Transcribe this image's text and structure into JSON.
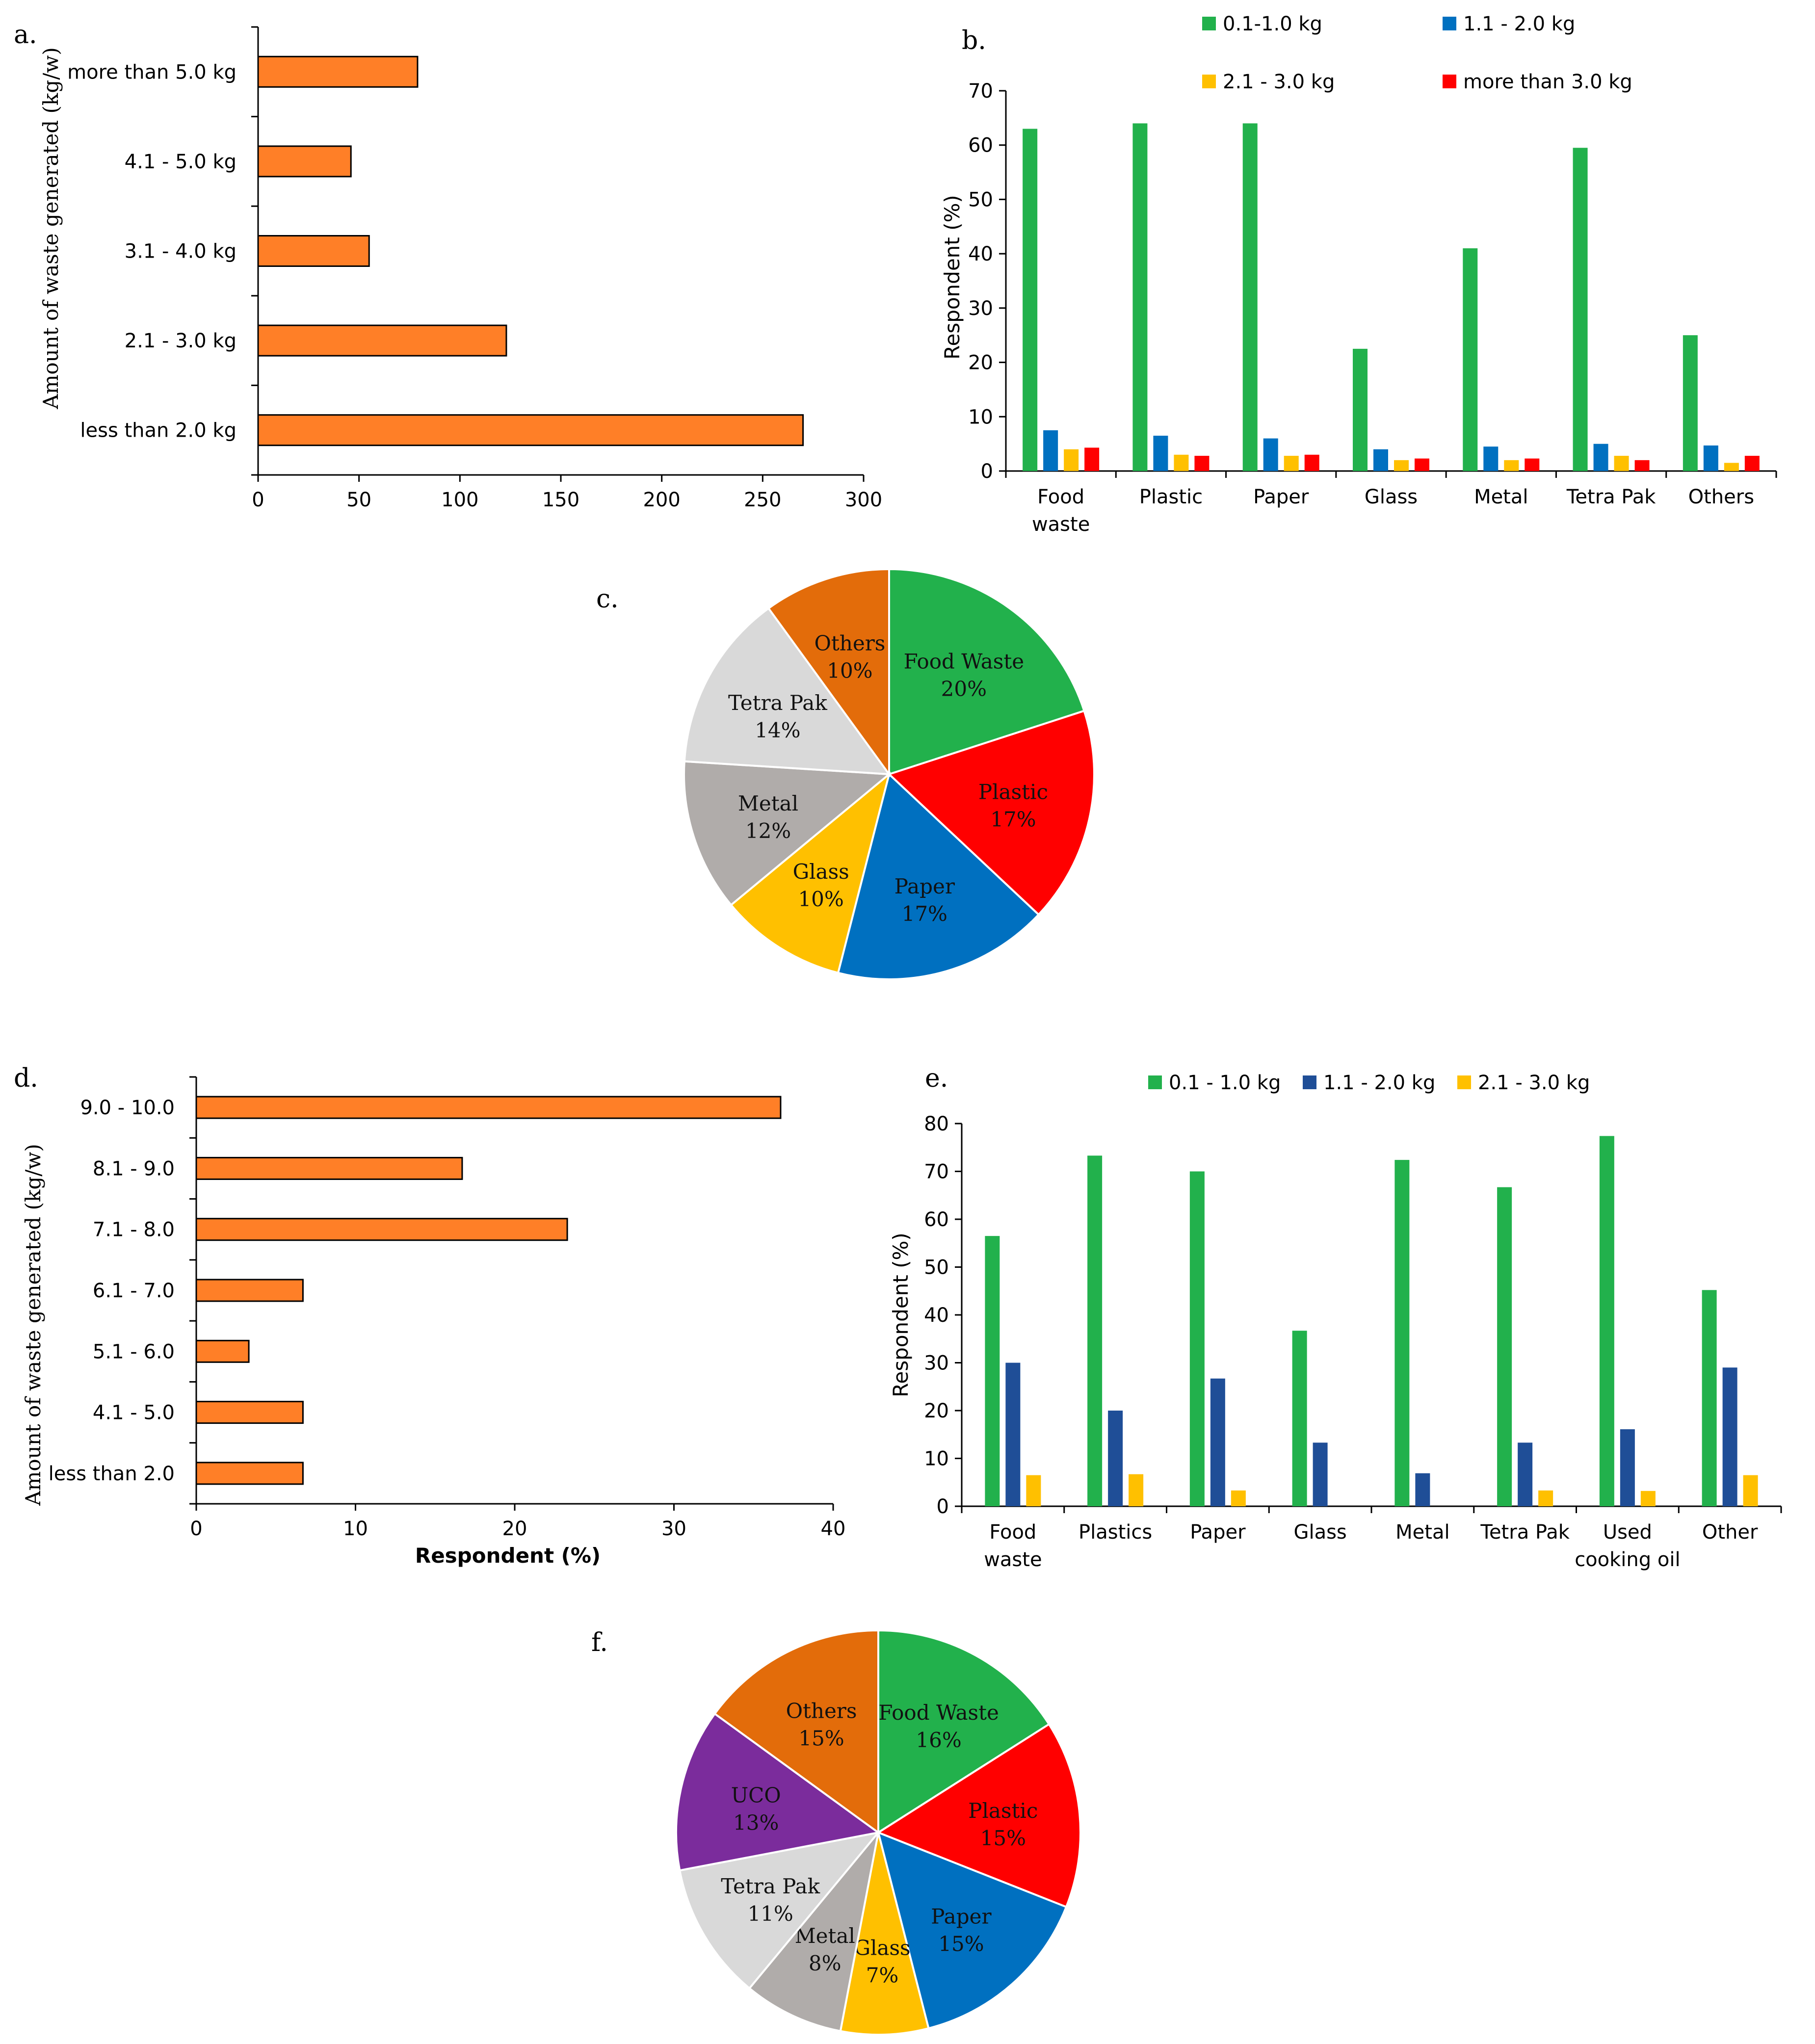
{
  "colors": {
    "green": "#22B14C",
    "blue": "#0070C0",
    "navy": "#1F4E97",
    "yellow": "#FFC000",
    "red": "#FF0000",
    "orange": "#FF7F27",
    "darkorange": "#E36C0A",
    "gray": "#B0ACAA",
    "lightgray": "#D9D9D9",
    "purple": "#7B2C9C"
  },
  "chart_data": [
    {
      "panel": "a.",
      "type": "bar",
      "orientation": "horizontal",
      "ylabel": "Amount of waste generated (kg/w)",
      "xlabel": "",
      "xlim": [
        0,
        300
      ],
      "xticks": [
        "0",
        "50",
        "100",
        "150",
        "200",
        "250",
        "300"
      ],
      "categories": [
        "more than 5.0 kg",
        "4.1 - 5.0 kg",
        "3.1 - 4.0 kg",
        "2.1 - 3.0 kg",
        "less than 2.0 kg"
      ],
      "values": [
        79,
        46,
        55,
        123,
        270
      ]
    },
    {
      "panel": "b.",
      "type": "bar",
      "ylabel": "Respondent (%)",
      "ylim": [
        0,
        70
      ],
      "yticks": [
        "0",
        "10",
        "20",
        "30",
        "40",
        "50",
        "60",
        "70"
      ],
      "categories": [
        "Food\nwaste",
        "Plastic",
        "Paper",
        "Glass",
        "Metal",
        "Tetra Pak",
        "Others"
      ],
      "series": [
        {
          "name": "0.1-1.0 kg",
          "color": "#22B14C",
          "values": [
            63,
            64,
            64,
            22.5,
            41,
            59.5,
            25
          ]
        },
        {
          "name": "1.1 - 2.0 kg",
          "color": "#0070C0",
          "values": [
            7.5,
            6.5,
            6,
            4,
            4.5,
            5,
            4.7
          ]
        },
        {
          "name": "2.1 - 3.0 kg",
          "color": "#FFC000",
          "values": [
            4,
            3,
            2.8,
            2,
            2,
            2.8,
            1.5
          ]
        },
        {
          "name": "more than 3.0 kg",
          "color": "#FF0000",
          "values": [
            4.3,
            2.8,
            3,
            2.3,
            2.3,
            2,
            2.8
          ]
        }
      ]
    },
    {
      "panel": "c.",
      "type": "pie",
      "slices": [
        {
          "label": "Food Waste",
          "value": 20,
          "pct": "20%",
          "color": "#22B14C"
        },
        {
          "label": "Plastic",
          "value": 17,
          "pct": "17%",
          "color": "#FF0000"
        },
        {
          "label": "Paper",
          "value": 17,
          "pct": "17%",
          "color": "#0070C0"
        },
        {
          "label": "Glass",
          "value": 10,
          "pct": "10%",
          "color": "#FFC000"
        },
        {
          "label": "Metal",
          "value": 12,
          "pct": "12%",
          "color": "#B0ACAA"
        },
        {
          "label": "Tetra Pak",
          "value": 14,
          "pct": "14%",
          "color": "#D9D9D9"
        },
        {
          "label": "Others",
          "value": 10,
          "pct": "10%",
          "color": "#E36C0A"
        }
      ]
    },
    {
      "panel": "d.",
      "type": "bar",
      "orientation": "horizontal",
      "ylabel": "Amount of waste generated (kg/w)",
      "xlabel": "Respondent (%)",
      "xlim": [
        0,
        40
      ],
      "xticks": [
        "0",
        "10",
        "20",
        "30",
        "40"
      ],
      "categories": [
        "9.0 - 10.0",
        "8.1 - 9.0",
        "7.1 - 8.0",
        "6.1 - 7.0",
        "5.1 - 6.0",
        "4.1 - 5.0",
        "less than 2.0"
      ],
      "values": [
        36.7,
        16.7,
        23.3,
        6.7,
        3.3,
        6.7,
        6.7
      ]
    },
    {
      "panel": "e.",
      "type": "bar",
      "ylabel": "Respondent (%)",
      "ylim": [
        0,
        80
      ],
      "yticks": [
        "0",
        "10",
        "20",
        "30",
        "40",
        "50",
        "60",
        "70",
        "80"
      ],
      "categories": [
        "Food\nwaste",
        "Plastics",
        "Paper",
        "Glass",
        "Metal",
        "Tetra Pak",
        "Used\ncooking oil",
        "Other"
      ],
      "series": [
        {
          "name": "0.1 - 1.0 kg",
          "color": "#22B14C",
          "values": [
            56.5,
            73.3,
            70,
            36.7,
            72.4,
            66.7,
            77.4,
            45.2
          ]
        },
        {
          "name": "1.1 - 2.0 kg",
          "color": "#1F4E97",
          "values": [
            30,
            20,
            26.7,
            13.3,
            6.9,
            13.3,
            16.1,
            29
          ]
        },
        {
          "name": "2.1 - 3.0 kg",
          "color": "#FFC000",
          "values": [
            6.5,
            6.7,
            3.3,
            0,
            0,
            3.3,
            3.2,
            6.5
          ]
        }
      ]
    },
    {
      "panel": "f.",
      "type": "pie",
      "slices": [
        {
          "label": "Food Waste",
          "value": 16,
          "pct": "16%",
          "color": "#22B14C"
        },
        {
          "label": "Plastic",
          "value": 15,
          "pct": "15%",
          "color": "#FF0000"
        },
        {
          "label": "Paper",
          "value": 15,
          "pct": "15%",
          "color": "#0070C0"
        },
        {
          "label": "Glass",
          "value": 7,
          "pct": "7%",
          "color": "#FFC000"
        },
        {
          "label": "Metal",
          "value": 8,
          "pct": "8%",
          "color": "#B0ACAA"
        },
        {
          "label": "Tetra Pak",
          "value": 11,
          "pct": "11%",
          "color": "#D9D9D9"
        },
        {
          "label": "UCO",
          "value": 13,
          "pct": "13%",
          "color": "#7B2C9C"
        },
        {
          "label": "Others",
          "value": 15,
          "pct": "15%",
          "color": "#E36C0A"
        }
      ]
    }
  ]
}
